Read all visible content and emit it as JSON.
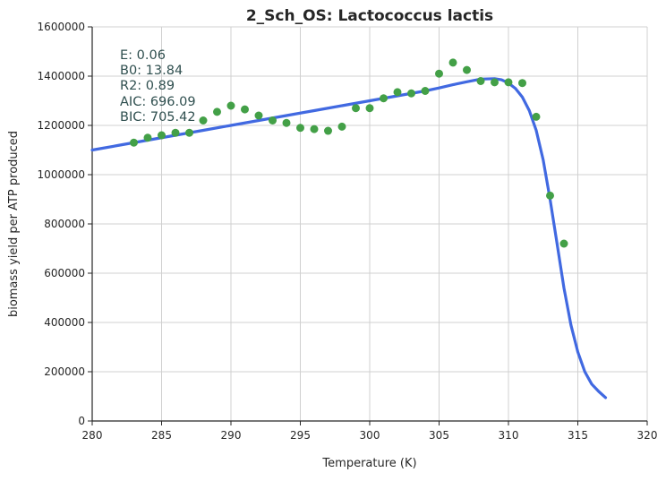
{
  "chart_data": {
    "type": "scatter",
    "title": "2_Sch_OS: Lactococcus lactis",
    "xlabel": "Temperature (K)",
    "ylabel": "biomass yield per ATP produced",
    "xlim": [
      280,
      320
    ],
    "ylim": [
      0,
      1600000
    ],
    "xticks": [
      "280",
      "285",
      "290",
      "295",
      "300",
      "305",
      "310",
      "315",
      "320"
    ],
    "yticks": [
      "0",
      "200000",
      "400000",
      "600000",
      "800000",
      "1000000",
      "1200000",
      "1400000",
      "1600000"
    ],
    "grid": true,
    "annotations": [
      "E:  0.06",
      "B0:  13.84",
      "R2:  0.89",
      "AIC: 696.09",
      "BIC: 705.42"
    ],
    "colors": {
      "points": "#43a047",
      "fit": "#4169e1"
    },
    "series": [
      {
        "mode": "markers",
        "x": [
          283,
          284,
          285,
          286,
          287,
          288,
          289,
          290,
          291,
          292,
          293,
          294,
          295,
          296,
          297,
          298,
          299,
          300,
          301,
          302,
          303,
          304,
          305,
          306,
          307,
          308,
          309,
          310,
          311,
          312,
          313,
          314
        ],
        "y": [
          1130000,
          1150000,
          1160000,
          1170000,
          1170000,
          1220000,
          1255000,
          1280000,
          1265000,
          1240000,
          1220000,
          1210000,
          1190000,
          1185000,
          1178000,
          1195000,
          1270000,
          1270000,
          1310000,
          1335000,
          1330000,
          1340000,
          1410000,
          1455000,
          1425000,
          1380000,
          1375000,
          1375000,
          1372000,
          1235000,
          915000,
          720000
        ]
      },
      {
        "mode": "line",
        "x": [
          280,
          282,
          284,
          286,
          288,
          290,
          292,
          294,
          296,
          298,
          300,
          302,
          304,
          305,
          306,
          307,
          308,
          309,
          309.5,
          310,
          310.5,
          311,
          311.5,
          312,
          312.5,
          313,
          313.5,
          314,
          314.5,
          315,
          315.5,
          316,
          316.5,
          317
        ],
        "y": [
          1100000,
          1120000,
          1140000,
          1160000,
          1180000,
          1200000,
          1220000,
          1240000,
          1260000,
          1280000,
          1300000,
          1320000,
          1340000,
          1352000,
          1365000,
          1377000,
          1388000,
          1390000,
          1385000,
          1372000,
          1350000,
          1315000,
          1260000,
          1180000,
          1060000,
          900000,
          720000,
          540000,
          390000,
          280000,
          200000,
          150000,
          120000,
          95000
        ]
      }
    ]
  }
}
